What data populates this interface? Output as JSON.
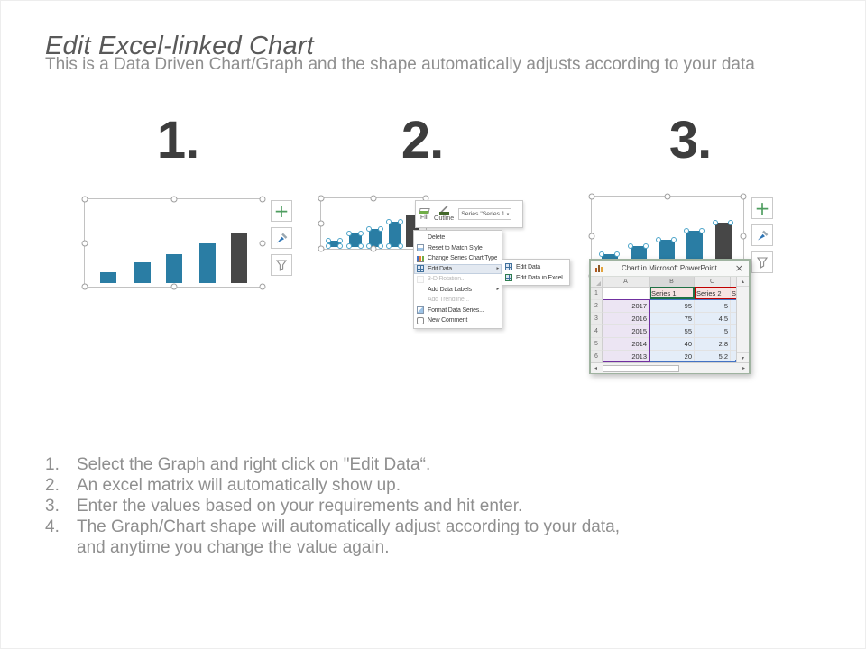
{
  "slide": {
    "title": "Edit Excel-linked Chart",
    "subtitle": "This is a Data Driven Chart/Graph and the shape automatically adjusts according to your data"
  },
  "steps": [
    {
      "number": "1."
    },
    {
      "number": "2."
    },
    {
      "number": "3."
    }
  ],
  "chart_data": {
    "type": "bar",
    "title": "Excel-linked bar chart",
    "categories": [
      "2013",
      "2014",
      "2015",
      "2016",
      "2017"
    ],
    "series": [
      {
        "name": "Series 1",
        "values": [
          20,
          40,
          55,
          75,
          95
        ]
      },
      {
        "name": "Series 2",
        "values": [
          5.2,
          2.8,
          5,
          4.5,
          5
        ]
      }
    ],
    "legend": "none",
    "axes": "hidden"
  },
  "mini_toolbar": {
    "fill_label": "Fill",
    "outline_label": "Outline",
    "series_selector": "Series \"Series 1"
  },
  "context_menu": {
    "items": [
      {
        "label": "Delete",
        "icon": "none",
        "enabled": true,
        "submenu": false,
        "highlighted": false
      },
      {
        "label": "Reset to Match Style",
        "icon": "reset",
        "enabled": true,
        "submenu": false,
        "highlighted": false
      },
      {
        "label": "Change Series Chart Type...",
        "icon": "chart-type",
        "enabled": true,
        "submenu": false,
        "highlighted": false
      },
      {
        "label": "Edit Data",
        "icon": "edit-data",
        "enabled": true,
        "submenu": true,
        "highlighted": true
      },
      {
        "label": "3-D Rotation...",
        "icon": "rotation",
        "enabled": false,
        "submenu": false,
        "highlighted": false
      },
      {
        "label": "Add Data Labels",
        "icon": "none",
        "enabled": true,
        "submenu": true,
        "highlighted": false
      },
      {
        "label": "Add Trendline...",
        "icon": "none",
        "enabled": false,
        "submenu": false,
        "highlighted": false
      },
      {
        "label": "Format Data Series...",
        "icon": "format",
        "enabled": true,
        "submenu": false,
        "highlighted": false
      },
      {
        "label": "New Comment",
        "icon": "comment",
        "enabled": true,
        "submenu": false,
        "highlighted": false
      }
    ],
    "submenu": [
      {
        "label": "Edit Data",
        "icon": "edit-data"
      },
      {
        "label": "Edit Data in Excel",
        "icon": "edit-data-excel"
      }
    ]
  },
  "excel_window": {
    "title": "Chart in Microsoft PowerPoint",
    "close_glyph": "×",
    "columns": [
      "A",
      "B",
      "C"
    ],
    "rows": [
      {
        "n": "1",
        "a": "",
        "b": "Series 1",
        "c": "Series 2",
        "d": "S"
      },
      {
        "n": "2",
        "a": "2017",
        "b": "95",
        "c": "5",
        "d": ""
      },
      {
        "n": "3",
        "a": "2016",
        "b": "75",
        "c": "4.5",
        "d": ""
      },
      {
        "n": "4",
        "a": "2015",
        "b": "55",
        "c": "5",
        "d": ""
      },
      {
        "n": "5",
        "a": "2014",
        "b": "40",
        "c": "2.8",
        "d": ""
      },
      {
        "n": "6",
        "a": "2013",
        "b": "20",
        "c": "5.2",
        "d": ""
      }
    ]
  },
  "icons": {
    "plus": "+",
    "submenu_arrow": "▸",
    "dropdown_arrow": "▾",
    "scroll_up": "▴",
    "scroll_down": "▾",
    "scroll_left": "◂",
    "scroll_right": "▸"
  },
  "instructions": [
    {
      "num": "1.",
      "lines": [
        "Select the Graph and right click on \"Edit Data“."
      ]
    },
    {
      "num": "2.",
      "lines": [
        "An excel matrix will automatically show up."
      ]
    },
    {
      "num": "3.",
      "lines": [
        "Enter the values based on your requirements and hit enter."
      ]
    },
    {
      "num": "4.",
      "lines": [
        "The Graph/Chart shape will automatically adjust according to your data,",
        "and anytime you change the value again."
      ]
    }
  ],
  "colors": {
    "bar_teal": "#2a7da4",
    "bar_dark": "#474747",
    "plus_green": "#4e9d5f",
    "range_purple": "#7030a0",
    "range_blue": "#4472c4",
    "range_red": "#c00000",
    "selected_cell_green": "#1f7145"
  }
}
